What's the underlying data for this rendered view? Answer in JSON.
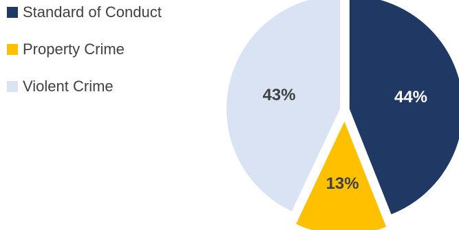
{
  "chart_data": {
    "type": "pie",
    "title": "",
    "legend_position": "left",
    "slices": [
      {
        "label": "Standard of Conduct",
        "value": 44,
        "display": "44%",
        "color": "#203864",
        "label_color": "#ffffff",
        "exploded": false
      },
      {
        "label": "Property Crime",
        "value": 13,
        "display": "13%",
        "color": "#ffc000",
        "label_color": "#404040",
        "exploded": true
      },
      {
        "label": "Violent Crime",
        "value": 43,
        "display": "43%",
        "color": "#dae3f3",
        "label_color": "#404040",
        "exploded": false
      }
    ]
  }
}
